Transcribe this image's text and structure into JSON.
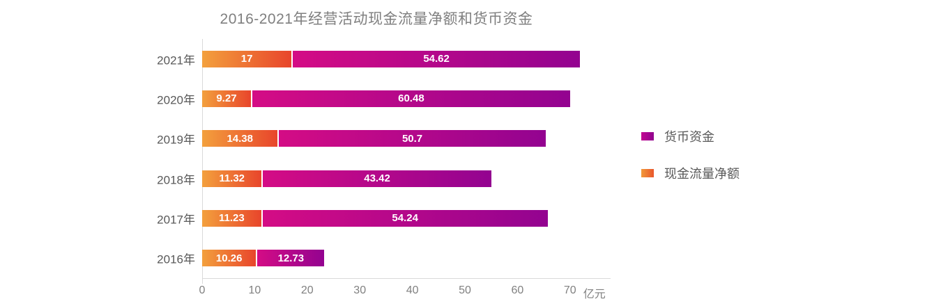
{
  "title": "2016-2021年经营活动现金流量净额和货币资金",
  "colors": {
    "title_text": "#7f7f7f",
    "category_text": "#595959",
    "tick_text": "#808080",
    "legend_text": "#595959",
    "value_label_text": "#ffffff",
    "axis_line": "#d9d9d9",
    "background": "#ffffff"
  },
  "chart_data": {
    "type": "bar",
    "orientation": "horizontal",
    "stacked": true,
    "title": "2016-2021年经营活动现金流量净额和货币资金",
    "categories": [
      "2021年",
      "2020年",
      "2019年",
      "2018年",
      "2017年",
      "2016年"
    ],
    "series": [
      {
        "key": "cash_flow_net",
        "name": "现金流量净额",
        "color_start": "#f3a03d",
        "color_end": "#e8452b",
        "values": [
          17,
          9.27,
          14.38,
          11.32,
          11.23,
          10.26
        ]
      },
      {
        "key": "monetary_funds",
        "name": "货币资金",
        "color_start": "#d40c85",
        "color_end": "#930390",
        "values": [
          54.62,
          60.48,
          50.7,
          43.42,
          54.24,
          12.73
        ]
      }
    ],
    "value_labels": "inside-white-bold",
    "x_ticks": [
      0,
      10,
      20,
      30,
      40,
      50,
      60,
      70
    ],
    "x_unit": "亿元",
    "xlim": [
      0,
      77.6
    ],
    "ylabel": "",
    "xlabel": "",
    "grid": false,
    "legend": [
      {
        "key": "monetary_funds",
        "label": "货币资金"
      },
      {
        "key": "cash_flow_net",
        "label": "现金流量净额"
      }
    ],
    "legend_position": "right"
  }
}
